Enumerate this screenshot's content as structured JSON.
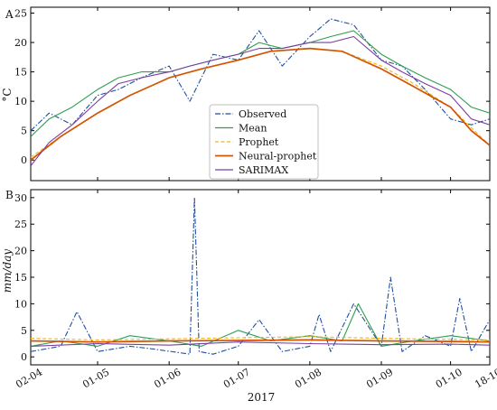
{
  "chart_data": [
    {
      "panel_letter": "A",
      "type": "line",
      "ylabel": "°C",
      "ylim": [
        -3.5,
        26
      ],
      "yticks": [
        0,
        5,
        10,
        15,
        20,
        25
      ],
      "x_anchor_dates": [
        "2017-04-02",
        "2017-10-18"
      ],
      "xticks": [
        {
          "date": "2017-04-02",
          "label": "02-04"
        },
        {
          "date": "2017-05-01",
          "label": "01-05"
        },
        {
          "date": "2017-06-01",
          "label": "01-06"
        },
        {
          "date": "2017-07-01",
          "label": "01-07"
        },
        {
          "date": "2017-08-01",
          "label": "01-08"
        },
        {
          "date": "2017-09-01",
          "label": "01-09"
        },
        {
          "date": "2017-10-01",
          "label": "01-10"
        },
        {
          "date": "2017-10-18",
          "label": "18-10"
        }
      ],
      "legend": {
        "placement": "center"
      },
      "series": [
        {
          "name": "Observed",
          "color": "#1f4e9c",
          "style": "dashdot",
          "dates": [
            "2017-04-02",
            "2017-04-10",
            "2017-04-20",
            "2017-05-01",
            "2017-05-10",
            "2017-05-20",
            "2017-06-01",
            "2017-06-10",
            "2017-06-20",
            "2017-07-01",
            "2017-07-10",
            "2017-07-20",
            "2017-08-01",
            "2017-08-10",
            "2017-08-20",
            "2017-09-01",
            "2017-09-10",
            "2017-09-20",
            "2017-10-01",
            "2017-10-10",
            "2017-10-18"
          ],
          "values": [
            5,
            8,
            6,
            11,
            12,
            14,
            16,
            10,
            18,
            17,
            22,
            16,
            21,
            24,
            23,
            17,
            16,
            12,
            7,
            6,
            7
          ]
        },
        {
          "name": "Mean",
          "color": "#2e9e4f",
          "style": "solid",
          "dates": [
            "2017-04-02",
            "2017-04-10",
            "2017-04-20",
            "2017-05-01",
            "2017-05-10",
            "2017-05-20",
            "2017-06-01",
            "2017-06-10",
            "2017-06-20",
            "2017-07-01",
            "2017-07-10",
            "2017-07-20",
            "2017-08-01",
            "2017-08-10",
            "2017-08-20",
            "2017-09-01",
            "2017-09-10",
            "2017-09-20",
            "2017-10-01",
            "2017-10-10",
            "2017-10-18"
          ],
          "values": [
            4,
            7,
            9,
            12,
            14,
            15,
            15,
            16,
            17,
            18,
            20,
            19,
            20,
            21,
            22,
            18,
            16,
            14,
            12,
            9,
            8
          ]
        },
        {
          "name": "Prophet",
          "color": "#f2b41e",
          "style": "dashed",
          "dates": [
            "2017-04-02",
            "2017-04-15",
            "2017-05-01",
            "2017-05-15",
            "2017-06-01",
            "2017-06-15",
            "2017-07-01",
            "2017-07-15",
            "2017-08-01",
            "2017-08-15",
            "2017-09-01",
            "2017-09-15",
            "2017-10-01",
            "2017-10-10",
            "2017-10-18"
          ],
          "values": [
            0.5,
            4,
            8,
            11,
            14,
            15.5,
            17,
            18.5,
            19,
            18.5,
            16,
            13,
            9,
            5.5,
            2.5
          ]
        },
        {
          "name": "Neural-prophet",
          "color": "#d35400",
          "style": "solid",
          "dates": [
            "2017-04-02",
            "2017-04-15",
            "2017-05-01",
            "2017-05-15",
            "2017-06-01",
            "2017-06-15",
            "2017-07-01",
            "2017-07-15",
            "2017-08-01",
            "2017-08-15",
            "2017-09-01",
            "2017-09-15",
            "2017-10-01",
            "2017-10-10",
            "2017-10-18"
          ],
          "values": [
            0,
            4,
            8,
            11,
            14,
            15.5,
            17,
            18.5,
            19,
            18.5,
            15.5,
            12.5,
            9,
            5,
            2.5
          ]
        },
        {
          "name": "SARIMAX",
          "color": "#7b3fa0",
          "style": "solid",
          "dates": [
            "2017-04-02",
            "2017-04-10",
            "2017-04-20",
            "2017-05-01",
            "2017-05-10",
            "2017-05-20",
            "2017-06-01",
            "2017-06-10",
            "2017-06-20",
            "2017-07-01",
            "2017-07-10",
            "2017-07-20",
            "2017-08-01",
            "2017-08-10",
            "2017-08-20",
            "2017-09-01",
            "2017-09-10",
            "2017-09-20",
            "2017-10-01",
            "2017-10-10",
            "2017-10-18"
          ],
          "values": [
            -1,
            3,
            6,
            10,
            13,
            14,
            15,
            16,
            17,
            18,
            19,
            19,
            20,
            20,
            21,
            17,
            15,
            13,
            11,
            7,
            6
          ]
        }
      ]
    },
    {
      "panel_letter": "B",
      "type": "line",
      "ylabel": "mm/day",
      "xlabel": "2017",
      "ylim": [
        -1.5,
        31.5
      ],
      "yticks": [
        0,
        5,
        10,
        15,
        20,
        25,
        30
      ],
      "x_anchor_dates": [
        "2017-04-02",
        "2017-10-18"
      ],
      "xticks": [
        {
          "date": "2017-04-02",
          "label": "02-04"
        },
        {
          "date": "2017-05-01",
          "label": "01-05"
        },
        {
          "date": "2017-06-01",
          "label": "01-06"
        },
        {
          "date": "2017-07-01",
          "label": "01-07"
        },
        {
          "date": "2017-08-01",
          "label": "01-08"
        },
        {
          "date": "2017-09-01",
          "label": "01-09"
        },
        {
          "date": "2017-10-01",
          "label": "01-10"
        },
        {
          "date": "2017-10-18",
          "label": "18-10"
        }
      ],
      "series": [
        {
          "name": "Observed",
          "color": "#1f4e9c",
          "style": "dashdot",
          "dates": [
            "2017-04-02",
            "2017-04-15",
            "2017-04-22",
            "2017-05-01",
            "2017-05-15",
            "2017-05-25",
            "2017-06-10",
            "2017-06-12",
            "2017-06-14",
            "2017-06-20",
            "2017-07-01",
            "2017-07-10",
            "2017-07-20",
            "2017-08-01",
            "2017-08-05",
            "2017-08-10",
            "2017-08-20",
            "2017-09-01",
            "2017-09-05",
            "2017-09-10",
            "2017-09-20",
            "2017-10-01",
            "2017-10-05",
            "2017-10-10",
            "2017-10-18"
          ],
          "values": [
            1,
            2,
            8.5,
            1,
            2,
            1.5,
            0.5,
            30,
            1,
            0.5,
            2,
            7,
            1,
            2,
            8,
            1,
            10,
            2,
            15,
            1,
            4,
            2,
            11,
            1,
            7
          ]
        },
        {
          "name": "Mean",
          "color": "#2e9e4f",
          "style": "solid",
          "dates": [
            "2017-04-02",
            "2017-04-15",
            "2017-05-01",
            "2017-05-15",
            "2017-06-01",
            "2017-06-15",
            "2017-07-01",
            "2017-07-15",
            "2017-08-01",
            "2017-08-15",
            "2017-08-22",
            "2017-09-01",
            "2017-09-15",
            "2017-10-01",
            "2017-10-18"
          ],
          "values": [
            2,
            3,
            2,
            4,
            3,
            2,
            5,
            3,
            4,
            3,
            10,
            2,
            3,
            4,
            3
          ]
        },
        {
          "name": "Prophet",
          "color": "#f2b41e",
          "style": "dashed",
          "dates": [
            "2017-04-02",
            "2017-05-01",
            "2017-06-01",
            "2017-07-01",
            "2017-08-01",
            "2017-09-01",
            "2017-10-01",
            "2017-10-18"
          ],
          "values": [
            3.5,
            3.2,
            3.4,
            3.6,
            3.8,
            3.5,
            3.3,
            3.2
          ]
        },
        {
          "name": "Neural-prophet",
          "color": "#d35400",
          "style": "solid",
          "dates": [
            "2017-04-02",
            "2017-05-01",
            "2017-06-01",
            "2017-07-01",
            "2017-08-01",
            "2017-09-01",
            "2017-10-01",
            "2017-10-18"
          ],
          "values": [
            3,
            2.8,
            3,
            3.1,
            3.2,
            3,
            2.9,
            2.8
          ]
        },
        {
          "name": "SARIMAX",
          "color": "#7b3fa0",
          "style": "solid",
          "dates": [
            "2017-04-02",
            "2017-05-01",
            "2017-06-01",
            "2017-07-01",
            "2017-08-01",
            "2017-09-01",
            "2017-10-01",
            "2017-10-18"
          ],
          "values": [
            2,
            2.5,
            2.2,
            2.8,
            2.5,
            2.3,
            2.4,
            2.2
          ]
        }
      ]
    }
  ]
}
